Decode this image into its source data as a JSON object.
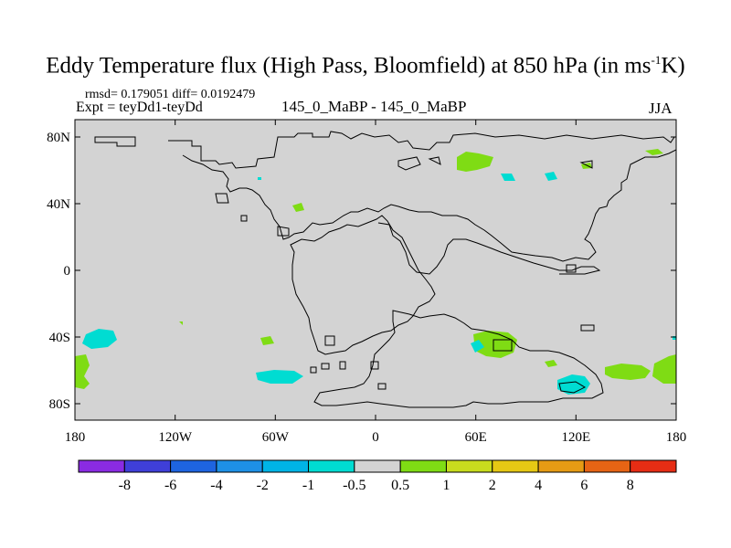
{
  "title": {
    "main": "Eddy Temperature flux (High Pass, Bloomfield) at 850 hPa (in ms",
    "sup": "-1",
    "tail": "K)"
  },
  "stats": "rmsd= 0.179051 diff= 0.0192479",
  "expt": "Expt = teyDd1-teyDd",
  "center_label": "145_0_MaBP - 145_0_MaBP",
  "season": "JJA",
  "axes": {
    "lat_ticks": [
      "80N",
      "40N",
      "0",
      "40S",
      "80S"
    ],
    "lon_ticks": [
      "180",
      "120W",
      "60W",
      "0",
      "60E",
      "120E",
      "180"
    ]
  },
  "colorbar": {
    "colors": [
      "#8a2be2",
      "#3f3fd8",
      "#1e64e0",
      "#1e90e6",
      "#00b4e6",
      "#00dcd2",
      "#d3d3d3",
      "#7fdc14",
      "#c8dc1e",
      "#e6c814",
      "#e69b14",
      "#e66414",
      "#e62d14"
    ],
    "labels": [
      "-8",
      "-6",
      "-4",
      "-2",
      "-1",
      "-0.5",
      "0.5",
      "1",
      "2",
      "4",
      "6",
      "8"
    ]
  },
  "colors": {
    "land_bg": "#d3d3d3",
    "positive": "#7fdc14",
    "negative": "#00dcd2"
  }
}
